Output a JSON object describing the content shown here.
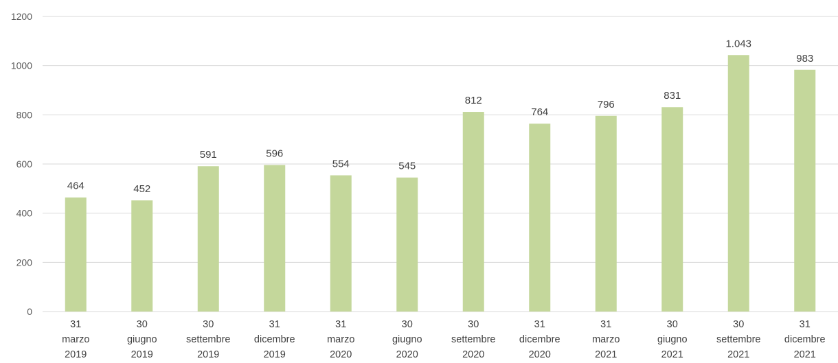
{
  "chart_data": {
    "type": "bar",
    "categories": [
      [
        "31",
        "marzo",
        "2019"
      ],
      [
        "30",
        "giugno",
        "2019"
      ],
      [
        "30",
        "settembre",
        "2019"
      ],
      [
        "31",
        "dicembre",
        "2019"
      ],
      [
        "31",
        "marzo",
        "2020"
      ],
      [
        "30",
        "giugno",
        "2020"
      ],
      [
        "30",
        "settembre",
        "2020"
      ],
      [
        "31",
        "dicembre",
        "2020"
      ],
      [
        "31",
        "marzo",
        "2021"
      ],
      [
        "30",
        "giugno",
        "2021"
      ],
      [
        "30",
        "settembre",
        "2021"
      ],
      [
        "31",
        "dicembre",
        "2021"
      ]
    ],
    "values": [
      464,
      452,
      591,
      596,
      554,
      545,
      812,
      764,
      796,
      831,
      1043,
      983
    ],
    "value_labels": [
      "464",
      "452",
      "591",
      "596",
      "554",
      "545",
      "812",
      "764",
      "796",
      "831",
      "1.043",
      "983"
    ],
    "ylim": [
      0,
      1200
    ],
    "yticks": [
      0,
      200,
      400,
      600,
      800,
      1000,
      1200
    ],
    "grid": true,
    "legend": "none",
    "bar_color": "#c4d79b",
    "grid_color": "#d9d9d9"
  }
}
